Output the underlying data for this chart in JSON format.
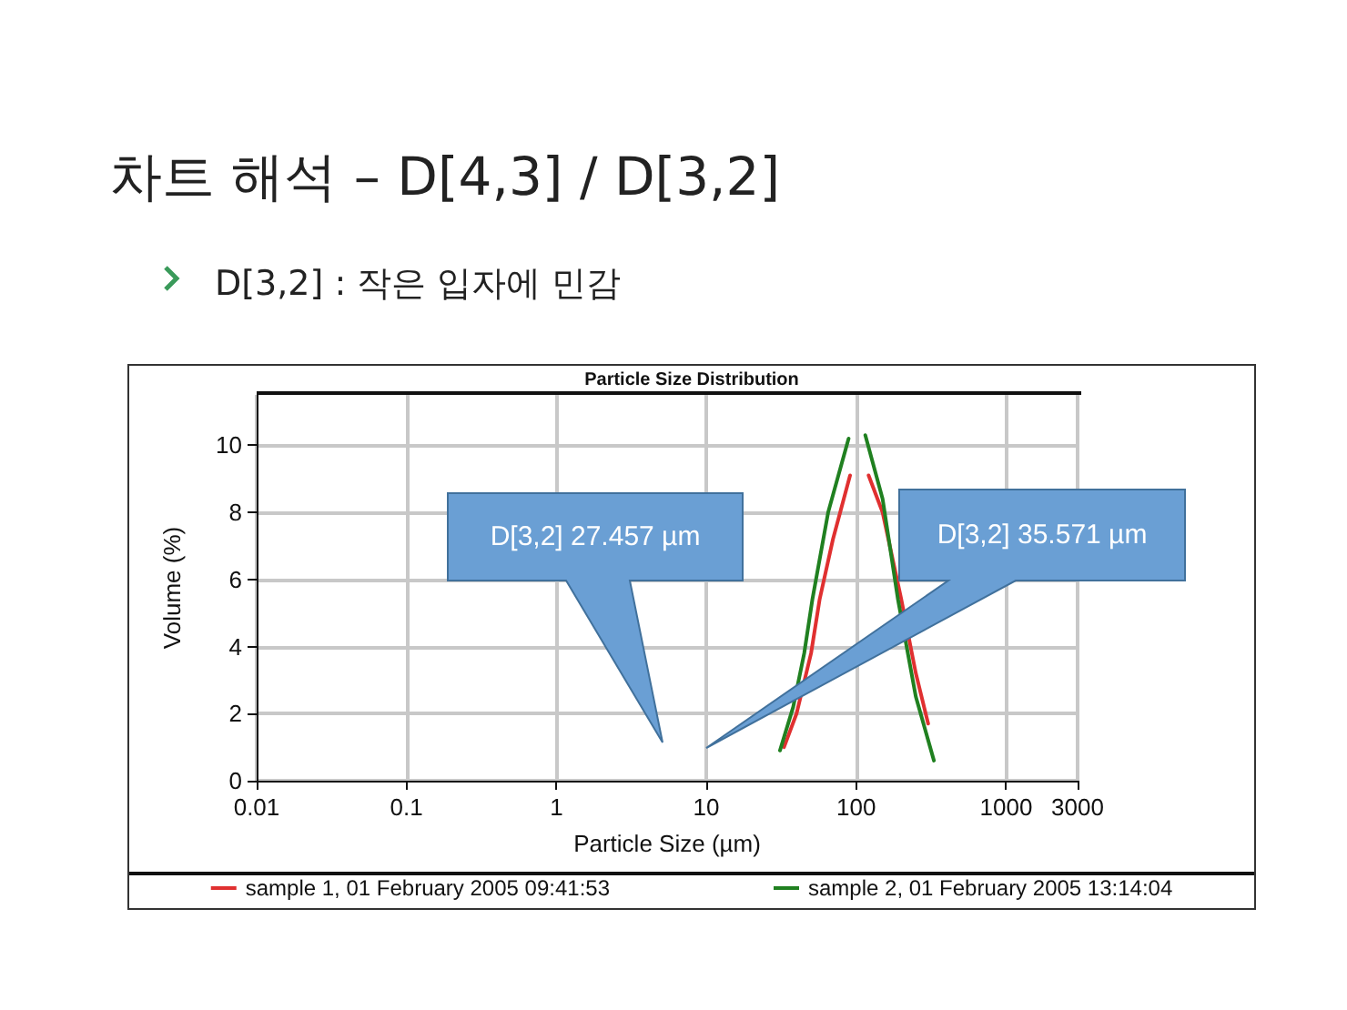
{
  "chart_data": {
    "type": "line",
    "title": "차트 해석 – D[4,3] / D[3,2]",
    "subtitle": "D[3,2] : 작은 입자에 민감",
    "xlabel": "Particle Size (µm)",
    "ylabel": "Volume (%)",
    "annotations": [
      "Particle Size Distribution",
      "D[3,2] 27.457 µm",
      "D[3,2] 35.571 µm"
    ],
    "series": [
      {
        "name": "sample 1, 01 February 2005 09:41:53",
        "color": "#e03030",
        "x": [
          33,
          40,
          50,
          57,
          70,
          91,
          100,
          121,
          150,
          200,
          250,
          302
        ],
        "values": [
          1.0,
          2.0,
          3.8,
          5.4,
          7.2,
          9.1,
          null,
          9.1,
          8.0,
          5.4,
          3.2,
          1.7
        ]
      },
      {
        "name": "sample 2, 01 February 2005 13:14:04",
        "color": "#208020",
        "x": [
          31,
          38,
          45,
          51,
          65,
          89,
          100,
          115,
          150,
          190,
          250,
          330
        ],
        "values": [
          0.9,
          2.2,
          3.8,
          5.4,
          8.0,
          10.2,
          null,
          10.3,
          8.4,
          5.4,
          2.5,
          0.6
        ]
      }
    ],
    "log": "x",
    "xlim": [
      0.01,
      3000
    ],
    "xticks": [
      0.01,
      0.1,
      1,
      10,
      100,
      1000,
      3000
    ],
    "ylim": [
      0,
      11.5
    ],
    "yticks": [
      0,
      2,
      4,
      6,
      8,
      10
    ],
    "grid": true,
    "legend": "bottom",
    "marker": "none",
    "line_style": "solid"
  }
}
